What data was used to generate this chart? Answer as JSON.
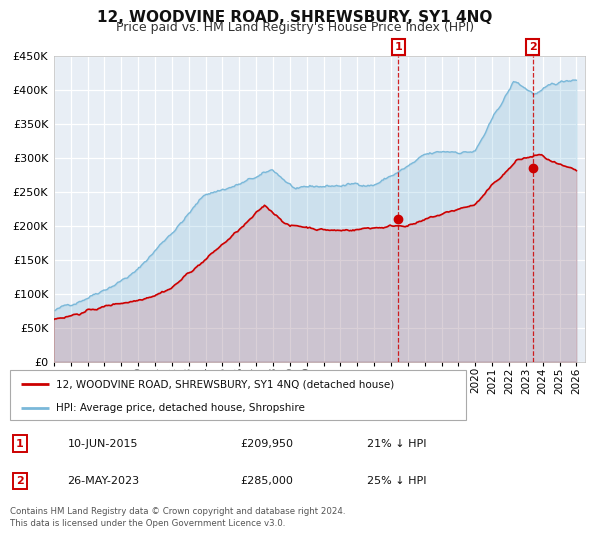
{
  "title": "12, WOODVINE ROAD, SHREWSBURY, SY1 4NQ",
  "subtitle": "Price paid vs. HM Land Registry's House Price Index (HPI)",
  "ylim": [
    0,
    450000
  ],
  "yticks": [
    0,
    50000,
    100000,
    150000,
    200000,
    250000,
    300000,
    350000,
    400000,
    450000
  ],
  "xlim_start": 1995.0,
  "xlim_end": 2026.5,
  "xticks": [
    1995,
    1996,
    1997,
    1998,
    1999,
    2000,
    2001,
    2002,
    2003,
    2004,
    2005,
    2006,
    2007,
    2008,
    2009,
    2010,
    2011,
    2012,
    2013,
    2014,
    2015,
    2016,
    2017,
    2018,
    2019,
    2020,
    2021,
    2022,
    2023,
    2024,
    2025,
    2026
  ],
  "hpi_color": "#7ab8d9",
  "price_color": "#cc0000",
  "hpi_fill_alpha": 0.25,
  "price_fill_alpha": 0.12,
  "sale1_x": 2015.44,
  "sale1_y": 209950,
  "sale2_x": 2023.4,
  "sale2_y": 285000,
  "marker_color": "#cc0000",
  "vline_color": "#cc0000",
  "legend_label_price": "12, WOODVINE ROAD, SHREWSBURY, SY1 4NQ (detached house)",
  "legend_label_hpi": "HPI: Average price, detached house, Shropshire",
  "annotation1_date": "10-JUN-2015",
  "annotation1_price": "£209,950",
  "annotation1_pct": "21% ↓ HPI",
  "annotation2_date": "26-MAY-2023",
  "annotation2_price": "£285,000",
  "annotation2_pct": "25% ↓ HPI",
  "footer": "Contains HM Land Registry data © Crown copyright and database right 2024.\nThis data is licensed under the Open Government Licence v3.0.",
  "bg_color": "#ffffff",
  "plot_bg_color": "#e8eef5",
  "grid_color": "#ffffff",
  "title_fontsize": 11,
  "subtitle_fontsize": 9,
  "tick_fontsize": 7.5,
  "ytick_fontsize": 8
}
